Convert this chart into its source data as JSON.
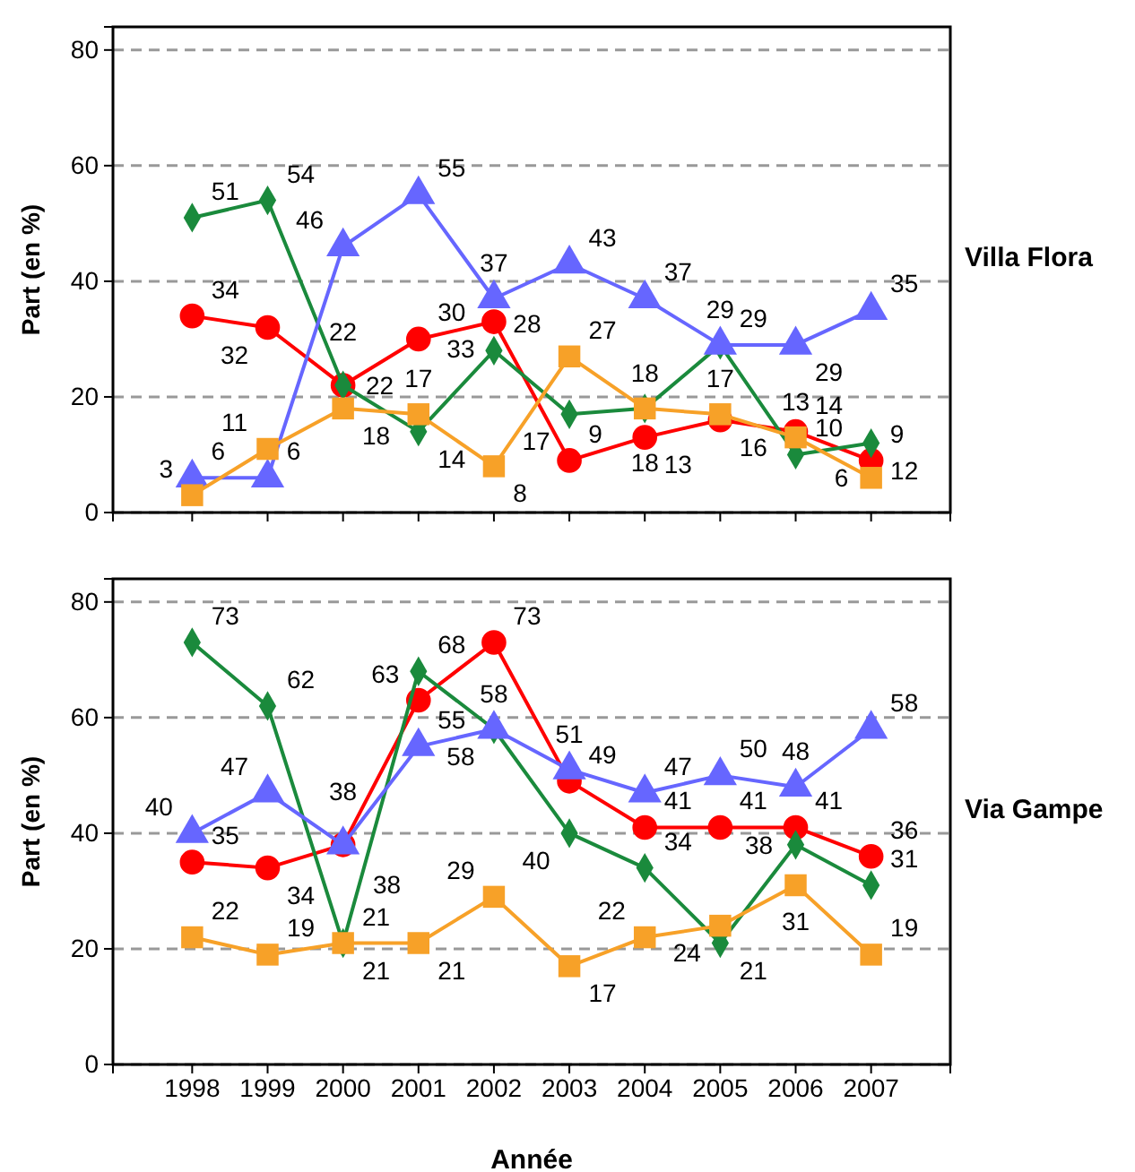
{
  "chart_data": [
    {
      "type": "line",
      "annotations": [
        "Villa Flora"
      ],
      "categories": [
        "1998",
        "1999",
        "2000",
        "2001",
        "2002",
        "2003",
        "2004",
        "2005",
        "2006",
        "2007"
      ],
      "ylabel": "Part (en %)",
      "ylim": [
        0,
        84
      ],
      "yticks": [
        0,
        20,
        40,
        60,
        80
      ],
      "grid": "y",
      "tick_labels": "y",
      "data_labels": true,
      "series": [
        {
          "color": "#ff0000",
          "marker": "circle",
          "values": [
            34,
            32,
            22,
            30,
            33,
            9,
            13,
            16,
            14,
            9
          ]
        },
        {
          "color": "#1a8a3c",
          "marker": "diamond",
          "values": [
            51,
            54,
            22,
            14,
            28,
            17,
            18,
            29,
            10,
            12
          ]
        },
        {
          "color": "#6666ff",
          "marker": "triangle",
          "values": [
            6,
            6,
            46,
            55,
            37,
            43,
            37,
            29,
            29,
            35
          ]
        },
        {
          "color": "#f7a128",
          "marker": "square",
          "values": [
            3,
            11,
            18,
            17,
            8,
            27,
            18,
            17,
            13,
            6
          ]
        }
      ]
    },
    {
      "type": "line",
      "annotations": [
        "Via Gampe"
      ],
      "categories": [
        "1998",
        "1999",
        "2000",
        "2001",
        "2002",
        "2003",
        "2004",
        "2005",
        "2006",
        "2007"
      ],
      "xlabel": "Année",
      "ylabel": "Part (en %)",
      "ylim": [
        0,
        84
      ],
      "yticks": [
        0,
        20,
        40,
        60,
        80
      ],
      "grid": "y",
      "data_labels": true,
      "series": [
        {
          "color": "#ff0000",
          "marker": "circle",
          "values": [
            35,
            34,
            38,
            63,
            73,
            49,
            41,
            41,
            41,
            36
          ]
        },
        {
          "color": "#1a8a3c",
          "marker": "diamond",
          "values": [
            73,
            62,
            21,
            68,
            58,
            40,
            34,
            21,
            38,
            31
          ]
        },
        {
          "color": "#6666ff",
          "marker": "triangle",
          "values": [
            40,
            47,
            38,
            55,
            58,
            51,
            47,
            50,
            48,
            58
          ]
        },
        {
          "color": "#f7a128",
          "marker": "square",
          "values": [
            22,
            19,
            21,
            21,
            29,
            17,
            22,
            24,
            31,
            19
          ]
        }
      ]
    }
  ]
}
